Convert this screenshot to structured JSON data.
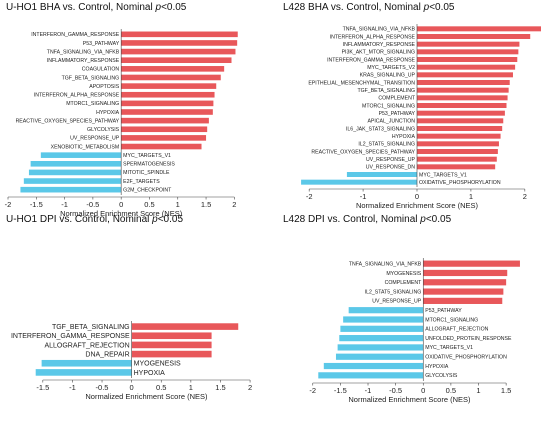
{
  "chart_data": [
    {
      "type": "bar",
      "orientation": "horizontal",
      "title": "U-HO1 BHA vs. Control, Nominal ",
      "title_p": "p",
      "title_tail": "<0.05",
      "xlabel": "Normalized Enrichment Score (NES)",
      "xlim": [
        -2,
        2.1
      ],
      "xticks": [
        -2,
        -1.5,
        -1,
        -0.5,
        0,
        0.5,
        1,
        1.5,
        2
      ],
      "xtick_labels": [
        "-2",
        "-1.5",
        "-1",
        "-0.5",
        "0",
        "0.5",
        "1",
        "1.5",
        "2"
      ],
      "colors": {
        "positive": "#e8575a",
        "negative": "#5bc8e8"
      },
      "categories": [
        "INTERFERON_GAMMA_RESPONSE",
        "P53_PATHWAY",
        "TNFA_SIGNALING_VIA_NFKB",
        "INFLAMMATORY_RESPONSE",
        "COAGULATION",
        "TGF_BETA_SIGNALING",
        "APOPTOSIS",
        "INTERFERON_ALPHA_RESPONSE",
        "MTORC1_SIGNALING",
        "HYPOXIA",
        "REACTIVE_OXYGEN_SPECIES_PATHWAY",
        "GLYCOLYSIS",
        "UV_RESPONSE_UP",
        "XENOBIOTIC_METABOLISM",
        "MYC_TARGETS_V1",
        "SPERMATOGENESIS",
        "MITOTIC_SPINDLE",
        "E2F_TARGETS",
        "G2M_CHECKPOINT"
      ],
      "values": [
        2.06,
        2.05,
        2.02,
        1.95,
        1.82,
        1.76,
        1.68,
        1.65,
        1.63,
        1.62,
        1.55,
        1.52,
        1.5,
        1.42,
        -1.42,
        -1.6,
        -1.63,
        -1.72,
        -1.78
      ]
    },
    {
      "type": "bar",
      "orientation": "horizontal",
      "title": "L428 BHA vs. Control, Nominal ",
      "title_p": "p",
      "title_tail": "<0.05",
      "xlabel": "Normalized Enrichment Score (NES)",
      "xlim": [
        -2.3,
        2.3
      ],
      "xticks": [
        -2,
        -1,
        0,
        1,
        2
      ],
      "xtick_labels": [
        "-2",
        "-1",
        "0",
        "1",
        "2"
      ],
      "colors": {
        "positive": "#e8575a",
        "negative": "#5bc8e8"
      },
      "categories": [
        "TNFA_SIGNALING_VIA_NFKB",
        "INTERFERON_ALPHA_RESPONSE",
        "INFLAMMATORY_RESPONSE",
        "PI3K_AKT_MTOR_SIGNALING",
        "INTERFERON_GAMMA_RESPONSE",
        "MYC_TARGETS_V2",
        "KRAS_SIGNALING_UP",
        "EPITHELIAL_MESENCHYMAL_TRANSITION",
        "TGF_BETA_SIGNALING",
        "COMPLEMENT",
        "MTORC1_SIGNALING",
        "P53_PATHWAY",
        "APICAL_JUNCTION",
        "IL6_JAK_STAT3_SIGNALING",
        "HYPOXIA",
        "IL2_STAT5_SIGNALING",
        "REACTIVE_OXYGEN_SPECIES_PATHWAY",
        "UV_RESPONSE_UP",
        "UV_RESPONSE_DN",
        "MYC_TARGETS_V1",
        "OXIDATIVE_PHOSPHORYLATION"
      ],
      "values": [
        2.3,
        2.1,
        1.9,
        1.88,
        1.86,
        1.82,
        1.78,
        1.72,
        1.7,
        1.68,
        1.66,
        1.63,
        1.6,
        1.58,
        1.55,
        1.52,
        1.5,
        1.48,
        1.45,
        -1.3,
        -2.15
      ]
    },
    {
      "type": "bar",
      "orientation": "horizontal",
      "title": "U-HO1 DPI vs. Control, Nominal ",
      "title_p": "p",
      "title_tail": "<0.05",
      "xlabel": "Normalized Enrichment Score (NES)",
      "xlim": [
        -1.75,
        2.1
      ],
      "xticks": [
        -1.5,
        -1,
        -0.5,
        0,
        0.5,
        1,
        1.5,
        2
      ],
      "xtick_labels": [
        "-1.5",
        "-1",
        "-0.5",
        "0",
        "0.5",
        "1",
        "1.5",
        "2"
      ],
      "colors": {
        "positive": "#e8575a",
        "negative": "#5bc8e8"
      },
      "categories": [
        "TGF_BETA_SIGNALING",
        "INTERFERON_GAMMA_RESPONSE",
        "ALLOGRAFT_REJECTION",
        "DNA_REPAIR",
        "MYOGENESIS",
        "HYPOXIA"
      ],
      "values": [
        1.8,
        1.35,
        1.35,
        1.35,
        -1.52,
        -1.62
      ]
    },
    {
      "type": "bar",
      "orientation": "horizontal",
      "title": "L428 DPI vs. Control, Nominal ",
      "title_p": "p",
      "title_tail": "<0.05",
      "xlabel": "Normalized Enrichment Score (NES)",
      "xlim": [
        -2.05,
        1.95
      ],
      "xticks": [
        -2,
        -1.5,
        -1,
        -0.5,
        0,
        0.5,
        1,
        1.5
      ],
      "xtick_labels": [
        "-2",
        "-1.5",
        "-1",
        "-0.5",
        "0",
        "0.5",
        "1",
        "1.5"
      ],
      "colors": {
        "positive": "#e8575a",
        "negative": "#5bc8e8"
      },
      "categories": [
        "TNFA_SIGNALING_VIA_NFKB",
        "MYOGENESIS",
        "COMPLEMENT",
        "IL2_STAT5_SIGNALING",
        "UV_RESPONSE_UP",
        "P53_PATHWAY",
        "MTORC1_SIGNALING",
        "ALLOGRAFT_REJECTION",
        "UNFOLDED_PROTEIN_RESPONSE",
        "MYC_TARGETS_V1",
        "OXIDATIVE_PHOSPHORYLATION",
        "HYPOXIA",
        "GLYCOLYSIS"
      ],
      "values": [
        1.75,
        1.52,
        1.5,
        1.45,
        1.43,
        -1.35,
        -1.45,
        -1.5,
        -1.52,
        -1.55,
        -1.58,
        -1.8,
        -1.9
      ]
    }
  ]
}
